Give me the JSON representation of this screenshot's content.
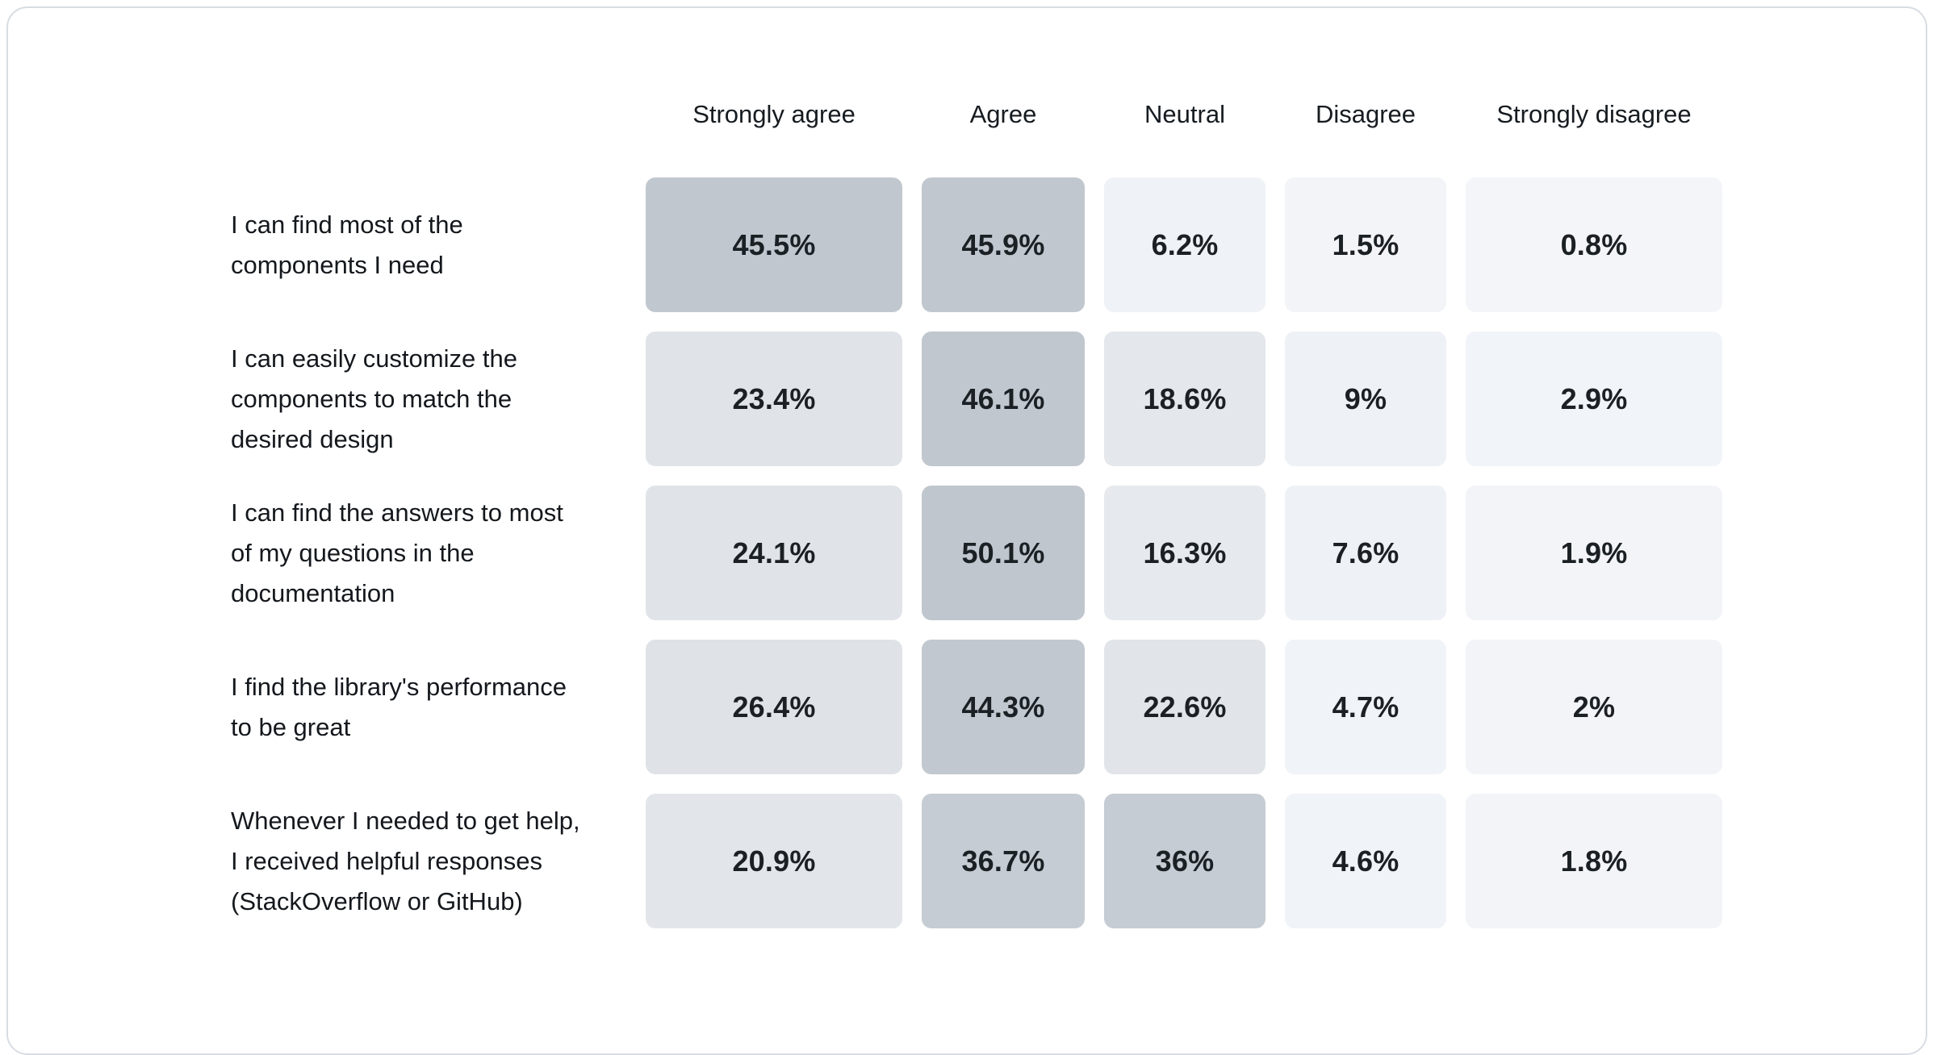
{
  "card": {
    "background": "#ffffff",
    "border_color": "#d8dde3"
  },
  "chart_data": {
    "type": "heatmap",
    "title": "",
    "value_format": "percent",
    "legend_position": "none",
    "grid": false,
    "columns": [
      "Strongly agree",
      "Agree",
      "Neutral",
      "Disagree",
      "Strongly disagree"
    ],
    "rows": [
      {
        "label": "I can find most of the\ncomponents I need",
        "values": [
          45.5,
          45.9,
          6.2,
          1.5,
          0.8
        ]
      },
      {
        "label": "I can easily customize the\ncomponents to match the\ndesired design",
        "values": [
          23.4,
          46.1,
          18.6,
          9,
          2.9
        ]
      },
      {
        "label": "I can find the answers to most\nof my questions in the\ndocumentation",
        "values": [
          24.1,
          50.1,
          16.3,
          7.6,
          1.9
        ]
      },
      {
        "label": "I find the library's performance\nto be great",
        "values": [
          26.4,
          44.3,
          22.6,
          4.7,
          2
        ]
      },
      {
        "label": "Whenever I needed to get help,\nI received helpful responses\n(StackOverflow or GitHub)",
        "values": [
          20.9,
          36.7,
          36,
          4.6,
          1.8
        ]
      }
    ],
    "color_scale": {
      "description": "cell background interpolated from value (%)",
      "stops": [
        [
          0,
          "#f3f5f9"
        ],
        [
          5,
          "#f0f3f7"
        ],
        [
          10,
          "#edf0f4"
        ],
        [
          20,
          "#e2e6ea"
        ],
        [
          28,
          "#dee2e6"
        ],
        [
          36,
          "#c6ccd3"
        ],
        [
          46,
          "#c1c7ce"
        ],
        [
          55,
          "#bec4cb"
        ]
      ],
      "text_color": "#1b2025"
    }
  }
}
